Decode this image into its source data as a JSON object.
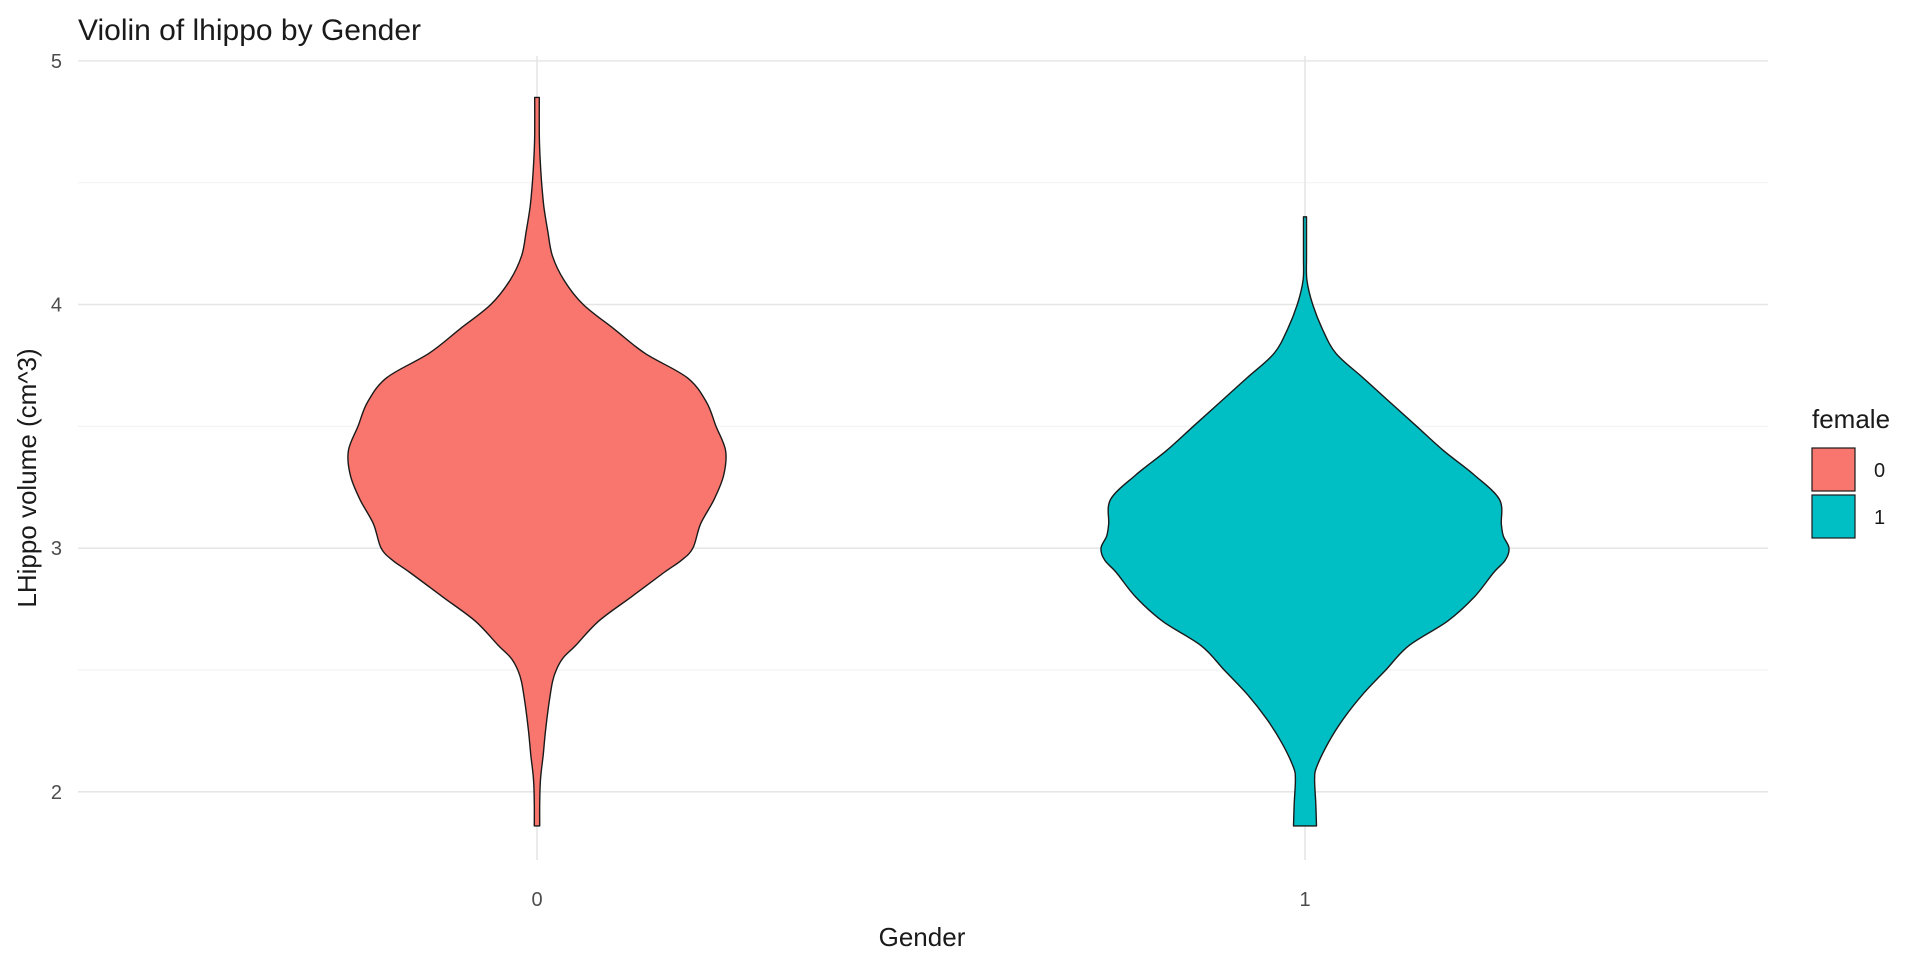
{
  "chart_data": {
    "type": "violin",
    "title": "Violin of lhippo by Gender",
    "xlabel": "Gender",
    "ylabel": "LHippo volume (cm^3)",
    "categories": [
      "0",
      "1"
    ],
    "ylim": [
      1.72,
      5.02
    ],
    "y_ticks": [
      2,
      3,
      4,
      5
    ],
    "grid": true,
    "legend": {
      "title": "female",
      "position": "right",
      "entries": [
        {
          "label": "0",
          "color": "#F8766D"
        },
        {
          "label": "1",
          "color": "#00BFC4"
        }
      ]
    },
    "series": [
      {
        "category": "0",
        "color": "#F8766D",
        "y_min": 1.86,
        "y_max": 4.85,
        "profile": [
          [
            1.86,
            0.007
          ],
          [
            1.95,
            0.007
          ],
          [
            2.05,
            0.009
          ],
          [
            2.15,
            0.016
          ],
          [
            2.25,
            0.022
          ],
          [
            2.35,
            0.03
          ],
          [
            2.45,
            0.04
          ],
          [
            2.5,
            0.05
          ],
          [
            2.55,
            0.068
          ],
          [
            2.6,
            0.1
          ],
          [
            2.7,
            0.16
          ],
          [
            2.8,
            0.245
          ],
          [
            2.9,
            0.33
          ],
          [
            2.95,
            0.375
          ],
          [
            3.0,
            0.405
          ],
          [
            3.1,
            0.425
          ],
          [
            3.2,
            0.46
          ],
          [
            3.3,
            0.485
          ],
          [
            3.4,
            0.49
          ],
          [
            3.5,
            0.465
          ],
          [
            3.6,
            0.44
          ],
          [
            3.7,
            0.39
          ],
          [
            3.8,
            0.28
          ],
          [
            3.9,
            0.2
          ],
          [
            4.0,
            0.12
          ],
          [
            4.1,
            0.07
          ],
          [
            4.2,
            0.04
          ],
          [
            4.3,
            0.028
          ],
          [
            4.4,
            0.018
          ],
          [
            4.5,
            0.012
          ],
          [
            4.6,
            0.008
          ],
          [
            4.7,
            0.006
          ],
          [
            4.85,
            0.006
          ]
        ]
      },
      {
        "category": "1",
        "color": "#00BFC4",
        "y_min": 1.86,
        "y_max": 4.36,
        "profile": [
          [
            1.86,
            0.03
          ],
          [
            1.95,
            0.028
          ],
          [
            2.05,
            0.025
          ],
          [
            2.1,
            0.03
          ],
          [
            2.2,
            0.06
          ],
          [
            2.3,
            0.1
          ],
          [
            2.4,
            0.15
          ],
          [
            2.5,
            0.21
          ],
          [
            2.6,
            0.27
          ],
          [
            2.7,
            0.37
          ],
          [
            2.8,
            0.44
          ],
          [
            2.9,
            0.49
          ],
          [
            2.95,
            0.52
          ],
          [
            3.0,
            0.53
          ],
          [
            3.05,
            0.515
          ],
          [
            3.1,
            0.51
          ],
          [
            3.2,
            0.505
          ],
          [
            3.3,
            0.44
          ],
          [
            3.4,
            0.36
          ],
          [
            3.5,
            0.29
          ],
          [
            3.6,
            0.22
          ],
          [
            3.7,
            0.15
          ],
          [
            3.8,
            0.08
          ],
          [
            3.9,
            0.045
          ],
          [
            4.0,
            0.02
          ],
          [
            4.1,
            0.005
          ],
          [
            4.2,
            0.004
          ],
          [
            4.36,
            0.004
          ]
        ]
      }
    ]
  }
}
